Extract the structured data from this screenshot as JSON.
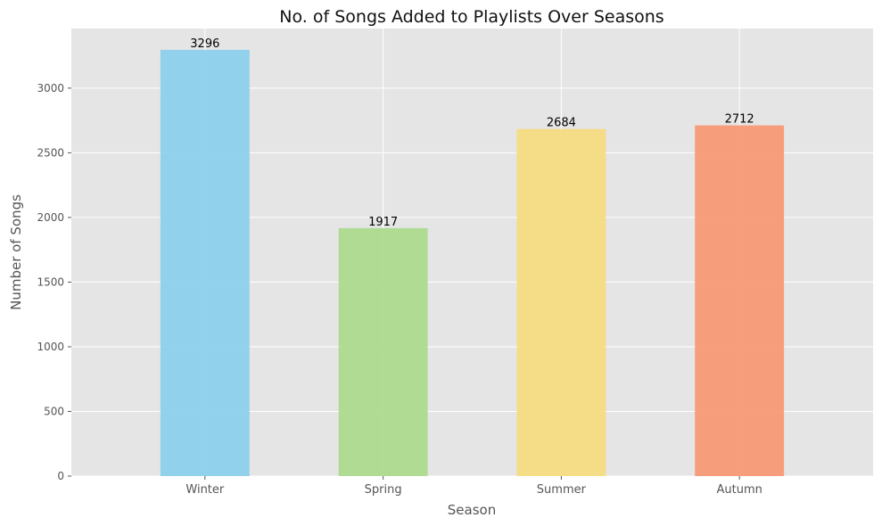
{
  "chart_data": {
    "type": "bar",
    "title": "No. of Songs Added to Playlists Over Seasons",
    "xlabel": "Season",
    "ylabel": "Number of Songs",
    "categories": [
      "Winter",
      "Spring",
      "Summer",
      "Autumn"
    ],
    "values": [
      3296,
      1917,
      2684,
      2712
    ],
    "data_labels": [
      "3296",
      "1917",
      "2684",
      "2712"
    ],
    "colors": [
      "#87ceeb",
      "#a8d98a",
      "#f6dc7c",
      "#f7966f"
    ],
    "ylim": [
      0,
      3461
    ],
    "yticks": [
      0,
      500,
      1000,
      1500,
      2000,
      2500,
      3000
    ],
    "ytick_labels": [
      "0",
      "500",
      "1000",
      "1500",
      "2000",
      "2500",
      "3000"
    ],
    "grid": true,
    "background": "#e5e5e5",
    "grid_color": "#ffffff",
    "legend": "none"
  }
}
